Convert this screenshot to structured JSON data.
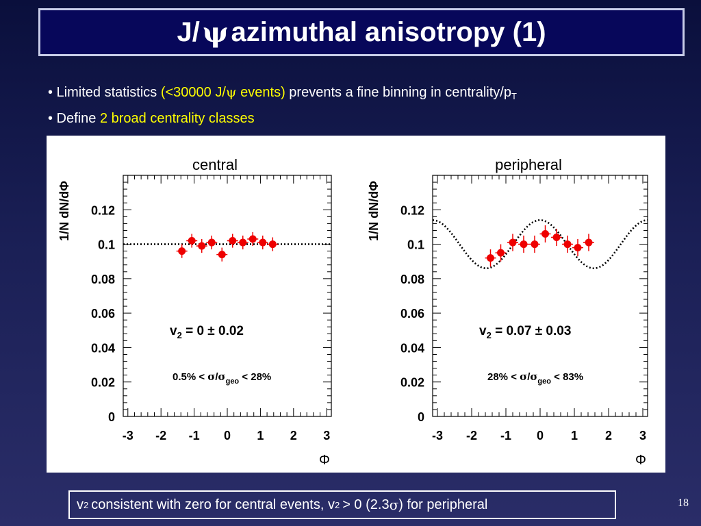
{
  "slide": {
    "title_prefix": "J/",
    "title_psi": "ψ",
    "title_suffix": "azimuthal anisotropy (1)",
    "bullet1": {
      "prefix": "• Limited statistics ",
      "highlight_a": "(<30000 J/",
      "psi": "ψ",
      "highlight_b": " events)",
      "suffix": " prevents a fine binning in centrality/p",
      "subscript": "T"
    },
    "bullet2": {
      "prefix": "• Define ",
      "highlight": "2 broad centrality classes"
    },
    "footer": {
      "v": "v",
      "sub": "2",
      "text_a": "consistent with zero for central events, v",
      "sub2": "2",
      "text_b": " > 0  (2.3",
      "sigma": "σ",
      "text_c": ") for peripheral"
    },
    "page_number": "18"
  },
  "chart_data": [
    {
      "type": "scatter",
      "title": "central",
      "xlabel": "Φ",
      "ylabel": "1/N dN/dΦ",
      "xlim": [
        -3.14,
        3.14
      ],
      "ylim": [
        0,
        0.14
      ],
      "xticks": [
        "-3",
        "-2",
        "-1",
        "0",
        "1",
        "2",
        "3"
      ],
      "yticks": [
        "0",
        "0.02",
        "0.04",
        "0.06",
        "0.08",
        "0.1",
        "0.12"
      ],
      "points": [
        {
          "x": -1.37,
          "y": 0.096,
          "err": 0.004
        },
        {
          "x": -1.07,
          "y": 0.102,
          "err": 0.004
        },
        {
          "x": -0.77,
          "y": 0.099,
          "err": 0.004
        },
        {
          "x": -0.47,
          "y": 0.101,
          "err": 0.004
        },
        {
          "x": -0.16,
          "y": 0.094,
          "err": 0.004
        },
        {
          "x": 0.16,
          "y": 0.102,
          "err": 0.004
        },
        {
          "x": 0.47,
          "y": 0.101,
          "err": 0.004
        },
        {
          "x": 0.77,
          "y": 0.103,
          "err": 0.004
        },
        {
          "x": 1.07,
          "y": 0.101,
          "err": 0.004
        },
        {
          "x": 1.37,
          "y": 0.1,
          "err": 0.004
        }
      ],
      "fit": {
        "v2": 0.0,
        "norm": 0.1,
        "style": "dotted"
      },
      "annotations": {
        "v2_label": "v",
        "v2_sub": "2",
        "v2_value": " = 0 ± 0.02",
        "cent_a": "0.5% < ",
        "sigma": "σ",
        "slash": "/",
        "sigma2": "σ",
        "geo": "geo",
        "cent_b": " < 28%"
      }
    },
    {
      "type": "scatter",
      "title": "peripheral",
      "xlabel": "Φ",
      "ylabel": "1/N dN/dΦ",
      "xlim": [
        -3.14,
        3.14
      ],
      "ylim": [
        0,
        0.14
      ],
      "xticks": [
        "-3",
        "-2",
        "-1",
        "0",
        "1",
        "2",
        "3"
      ],
      "yticks": [
        "0",
        "0.02",
        "0.04",
        "0.06",
        "0.08",
        "0.1",
        "0.12"
      ],
      "points": [
        {
          "x": -1.45,
          "y": 0.092,
          "err": 0.005
        },
        {
          "x": -1.15,
          "y": 0.095,
          "err": 0.005
        },
        {
          "x": -0.8,
          "y": 0.101,
          "err": 0.005
        },
        {
          "x": -0.48,
          "y": 0.1,
          "err": 0.005
        },
        {
          "x": -0.16,
          "y": 0.1,
          "err": 0.005
        },
        {
          "x": 0.15,
          "y": 0.106,
          "err": 0.005
        },
        {
          "x": 0.48,
          "y": 0.104,
          "err": 0.005
        },
        {
          "x": 0.8,
          "y": 0.1,
          "err": 0.005
        },
        {
          "x": 1.1,
          "y": 0.098,
          "err": 0.005
        },
        {
          "x": 1.42,
          "y": 0.101,
          "err": 0.005
        }
      ],
      "fit": {
        "v2": 0.07,
        "norm": 0.1,
        "style": "dotted"
      },
      "annotations": {
        "v2_label": "v",
        "v2_sub": "2",
        "v2_value": " = 0.07 ± 0.03",
        "cent_a": "28% < ",
        "sigma": "σ",
        "slash": "/",
        "sigma2": "σ",
        "geo": "geo",
        "cent_b": " < 83%"
      }
    }
  ],
  "colors": {
    "title_bg": "#07075a",
    "highlight": "#ffff00",
    "marker": "#ee0000",
    "text": "#ffffff"
  }
}
